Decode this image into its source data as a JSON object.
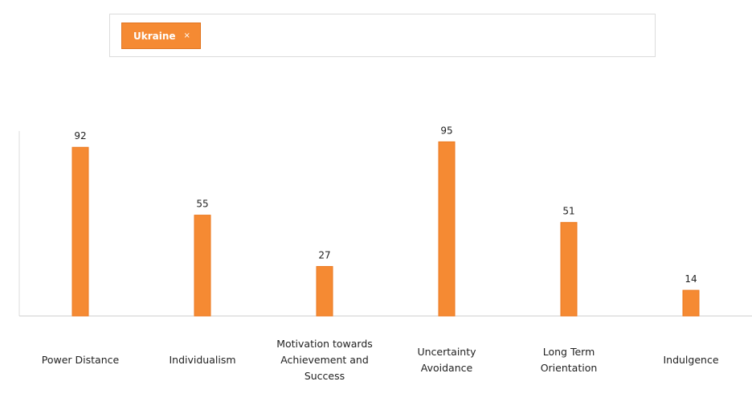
{
  "selector": {
    "tag": "Ukraine",
    "remove": "×"
  },
  "chart_data": {
    "type": "bar",
    "categories": [
      "Power Distance",
      "Individualism",
      "Motivation towards Achievement and Success",
      "Uncertainty Avoidance",
      "Long Term Orientation",
      "Indulgence"
    ],
    "values": [
      92,
      55,
      27,
      95,
      51,
      14
    ],
    "color": "#f58a33",
    "ylim": [
      0,
      100
    ]
  }
}
